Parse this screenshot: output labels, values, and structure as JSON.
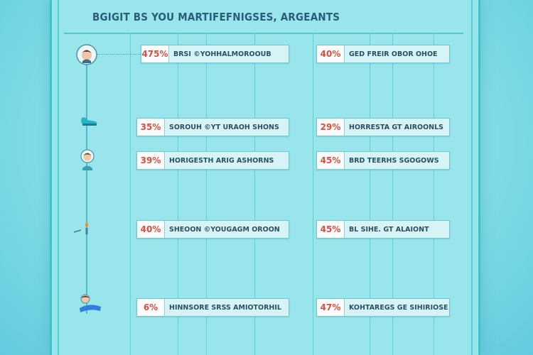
{
  "header": {
    "title": "BGIGIT BS YOU MARTIFEFNIGSES,  ARGEANTS"
  },
  "rows": [
    {
      "left": {
        "percent": "475%",
        "label": "BRSI ©YOHHALMOROOUB"
      },
      "right": {
        "percent": "40%",
        "label": "GED FREIR OBOR OHOE"
      }
    },
    {
      "left": {
        "percent": "35%",
        "label": "SOROUH ©YT URAOH SHONS"
      },
      "right": {
        "percent": "29%",
        "label": "HORRESTA GT AIROONLS"
      }
    },
    {
      "left": {
        "percent": "39%",
        "label": "HORIGESTH ARIG ASHORNS"
      },
      "right": {
        "percent": "45%",
        "label": "BRD TEERHS SGOGOWS"
      }
    },
    {
      "left": {
        "percent": "40%",
        "label": "SHEOON ©YOUGAGM OROON"
      },
      "right": {
        "percent": "45%",
        "label": "BL SIHE. GT ALAIONT"
      }
    },
    {
      "left": {
        "percent": "6%",
        "label": "HINNSORE SRSS AMIOTORHIL"
      },
      "right": {
        "percent": "47%",
        "label": "KOHTAREGS GE SIHIRIOSE"
      }
    }
  ],
  "icons": [
    "boy-avatar-icon",
    "shoe-icon",
    "child-avatar-icon",
    "candle-icon",
    "sleeping-person-icon"
  ],
  "colors": {
    "accent": "#3cc3cc",
    "percent": "#df4b3d",
    "text": "#2a5e76"
  }
}
